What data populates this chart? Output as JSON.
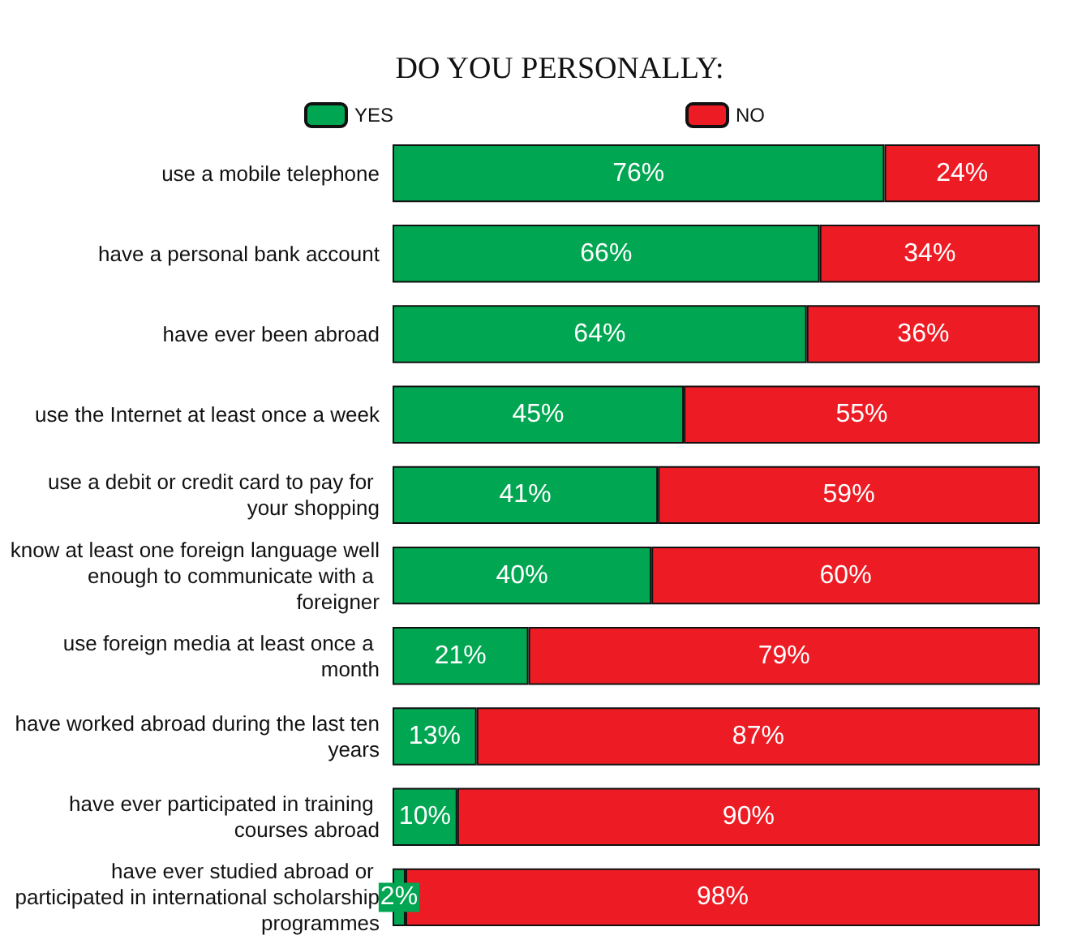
{
  "chart_data": {
    "type": "bar",
    "title": "DO YOU PERSONALLY:",
    "orientation": "horizontal",
    "stacked": true,
    "legend": "top",
    "tick_labels": "y",
    "categories": [
      "use a mobile telephone",
      "have a personal bank account",
      "have ever been abroad",
      "use the Internet at least once a week",
      "use a debit or credit card to pay for your shopping",
      "know at least one foreign language well enough to communicate with a foreigner",
      "use foreign media at least once a month",
      "have worked abroad during the last ten years",
      "have ever participated in training courses abroad",
      "have ever studied abroad or participated in international scholarship programmes"
    ],
    "series": [
      {
        "name": "YES",
        "color": "#00a651",
        "values": [
          76,
          66,
          64,
          45,
          41,
          40,
          21,
          13,
          10,
          2
        ],
        "value_labels": [
          "76%",
          "66%",
          "64%",
          "45%",
          "41%",
          "40%",
          "21%",
          "13%",
          "10%",
          "2%"
        ]
      },
      {
        "name": "NO",
        "color": "#ed1c24",
        "values": [
          24,
          34,
          36,
          55,
          59,
          60,
          79,
          87,
          90,
          98
        ],
        "value_labels": [
          "24%",
          "34%",
          "36%",
          "55%",
          "59%",
          "60%",
          "79%",
          "87%",
          "90%",
          "98%"
        ]
      }
    ]
  }
}
